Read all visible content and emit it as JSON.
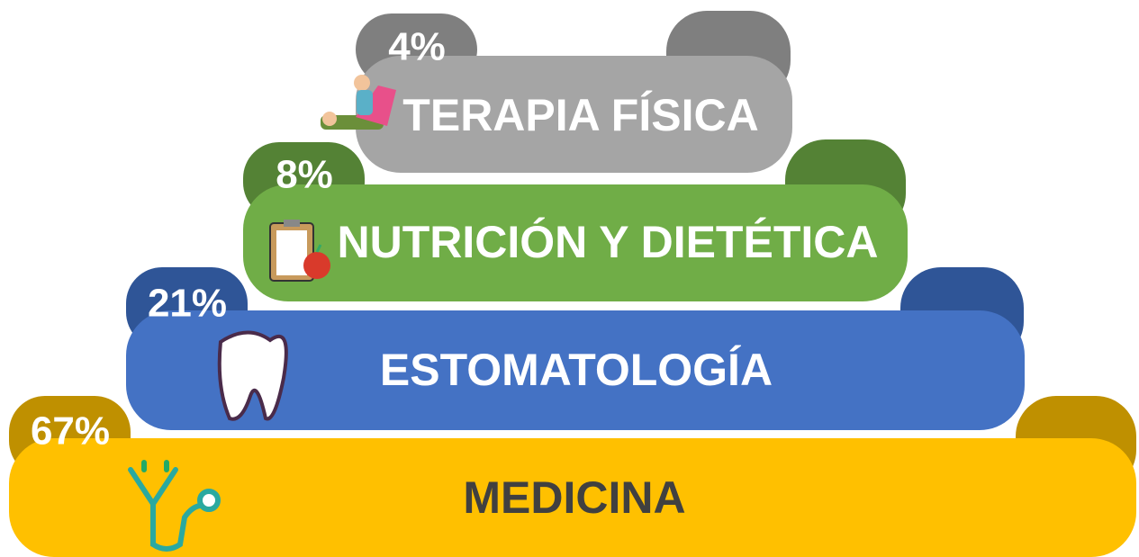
{
  "tiers": [
    {
      "percent": "4%",
      "label": "TERAPIA FÍSICA"
    },
    {
      "percent": "8%",
      "label": "NUTRICIÓN Y DIETÉTICA"
    },
    {
      "percent": "21%",
      "label": "ESTOMATOLOGÍA"
    },
    {
      "percent": "67%",
      "label": "MEDICINA"
    }
  ]
}
